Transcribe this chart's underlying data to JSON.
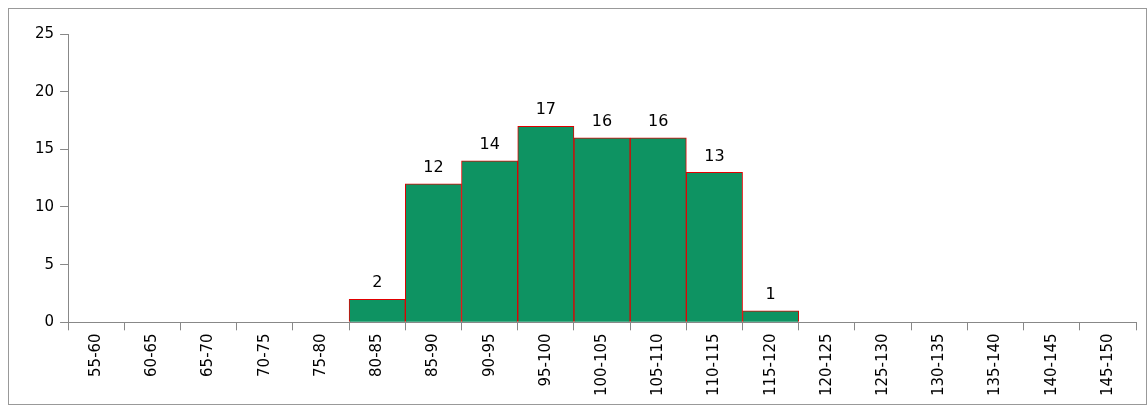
{
  "chart_data": {
    "type": "bar",
    "categories": [
      "55-60",
      "60-65",
      "65-70",
      "70-75",
      "75-80",
      "80-85",
      "85-90",
      "90-95",
      "95-100",
      "100-105",
      "105-110",
      "110-115",
      "115-120",
      "120-125",
      "125-130",
      "130-135",
      "135-140",
      "140-145",
      "145-150"
    ],
    "values": [
      0,
      0,
      0,
      0,
      0,
      2,
      12,
      14,
      17,
      16,
      16,
      13,
      1,
      0,
      0,
      0,
      0,
      0,
      0
    ],
    "value_labels": [
      null,
      null,
      null,
      null,
      null,
      "2",
      "12",
      "14",
      "17",
      "16",
      "16",
      "13",
      "1",
      null,
      null,
      null,
      null,
      null,
      null
    ],
    "color": "#0e9362",
    "ylim": [
      0,
      25
    ],
    "yticks": [
      0,
      5,
      10,
      15,
      20,
      25
    ],
    "grid": false,
    "legend": false
  }
}
